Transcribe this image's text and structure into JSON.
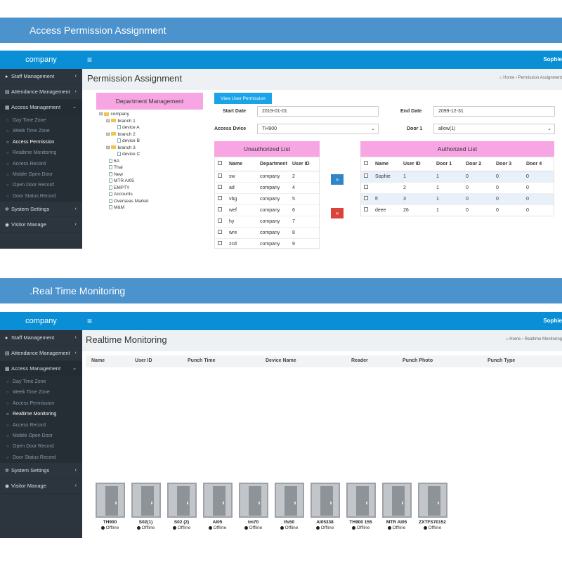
{
  "banner1": "Access Permission Assignment",
  "banner2": ".Real Time Monitoring",
  "topbar": {
    "brand": "company",
    "user": "Sophie",
    "menu_icon": "menu-icon"
  },
  "sidebar": {
    "staff": "Staff Management",
    "attendance": "Attendance Management",
    "access": "Access Management",
    "subitems": [
      "Day Time Zone",
      "Week Time Zone",
      "Access Permission",
      "Realtime Monitoring",
      "Access Record",
      "Mobile Open Door",
      "Open Door Record",
      "Door Status Record"
    ],
    "system": "System Settings",
    "visitor": "Visitor Manage"
  },
  "perm": {
    "title": "Permission Assignment",
    "crumb_home": "Home",
    "crumb_page": "Permission Assignment",
    "dept_header": "Department Management",
    "tree": {
      "company": "company",
      "branch1": "branch 1",
      "deviceA": "device A",
      "branch2": "branch 2",
      "deviceB": "device B",
      "branch3": "branch 3",
      "deviceC": "device C",
      "others": [
        "6A",
        "Thai",
        "New",
        "MTR AI05",
        "EMPTY",
        "Accounts",
        "Overseas Market",
        "M&M"
      ]
    },
    "view_btn": "View User Permission",
    "start_label": "Start Date",
    "start_value": "2019-01-01",
    "end_label": "End Date",
    "end_value": "2099-12-31",
    "device_label": "Access Dvice",
    "device_value": "TH900",
    "door_label": "Door 1",
    "door_value": "allow(1)",
    "unauth_header": "Unauthorized List",
    "unauth_cols": [
      "Name",
      "Department",
      "User ID"
    ],
    "unauth_rows": [
      [
        "sw",
        "company",
        "2"
      ],
      [
        "ad",
        "company",
        "4"
      ],
      [
        "vbg",
        "company",
        "5"
      ],
      [
        "wef",
        "company",
        "6"
      ],
      [
        "hy",
        "company",
        "7"
      ],
      [
        "wre",
        "company",
        "8"
      ],
      [
        "zcd",
        "company",
        "9"
      ]
    ],
    "move_right": "»",
    "move_left": "«",
    "auth_header": "Authorized List",
    "auth_cols": [
      "Name",
      "User ID",
      "Door 1",
      "Door 2",
      "Door 3",
      "Door 4"
    ],
    "auth_rows": [
      [
        "Sophie",
        "1",
        "1",
        "0",
        "0",
        "0"
      ],
      [
        "",
        "2",
        "1",
        "0",
        "0",
        "0"
      ],
      [
        "fr",
        "3",
        "1",
        "0",
        "0",
        "0"
      ],
      [
        "deee",
        "26",
        "1",
        "0",
        "0",
        "0"
      ]
    ]
  },
  "rt": {
    "title": "Realtime Monitoring",
    "crumb_home": "Home",
    "crumb_page": "Realtime Monitoring",
    "cols": [
      "Name",
      "User ID",
      "Punch Time",
      "Device Name",
      "Reader",
      "Punch Photo",
      "Punch Type"
    ],
    "doors": [
      {
        "name": "TH900",
        "status": "Offline"
      },
      {
        "name": "S02(1)",
        "status": "Offline"
      },
      {
        "name": "S02 (2)",
        "status": "Offline"
      },
      {
        "name": "AI05",
        "status": "Offline"
      },
      {
        "name": "tm70",
        "status": "Offline"
      },
      {
        "name": "tfs50",
        "status": "Offline"
      },
      {
        "name": "AI05338",
        "status": "Offline"
      },
      {
        "name": "TH900 155",
        "status": "Offline"
      },
      {
        "name": "MTR AI05",
        "status": "Offline"
      },
      {
        "name": "ZXTFS70152",
        "status": "Offline"
      }
    ]
  }
}
